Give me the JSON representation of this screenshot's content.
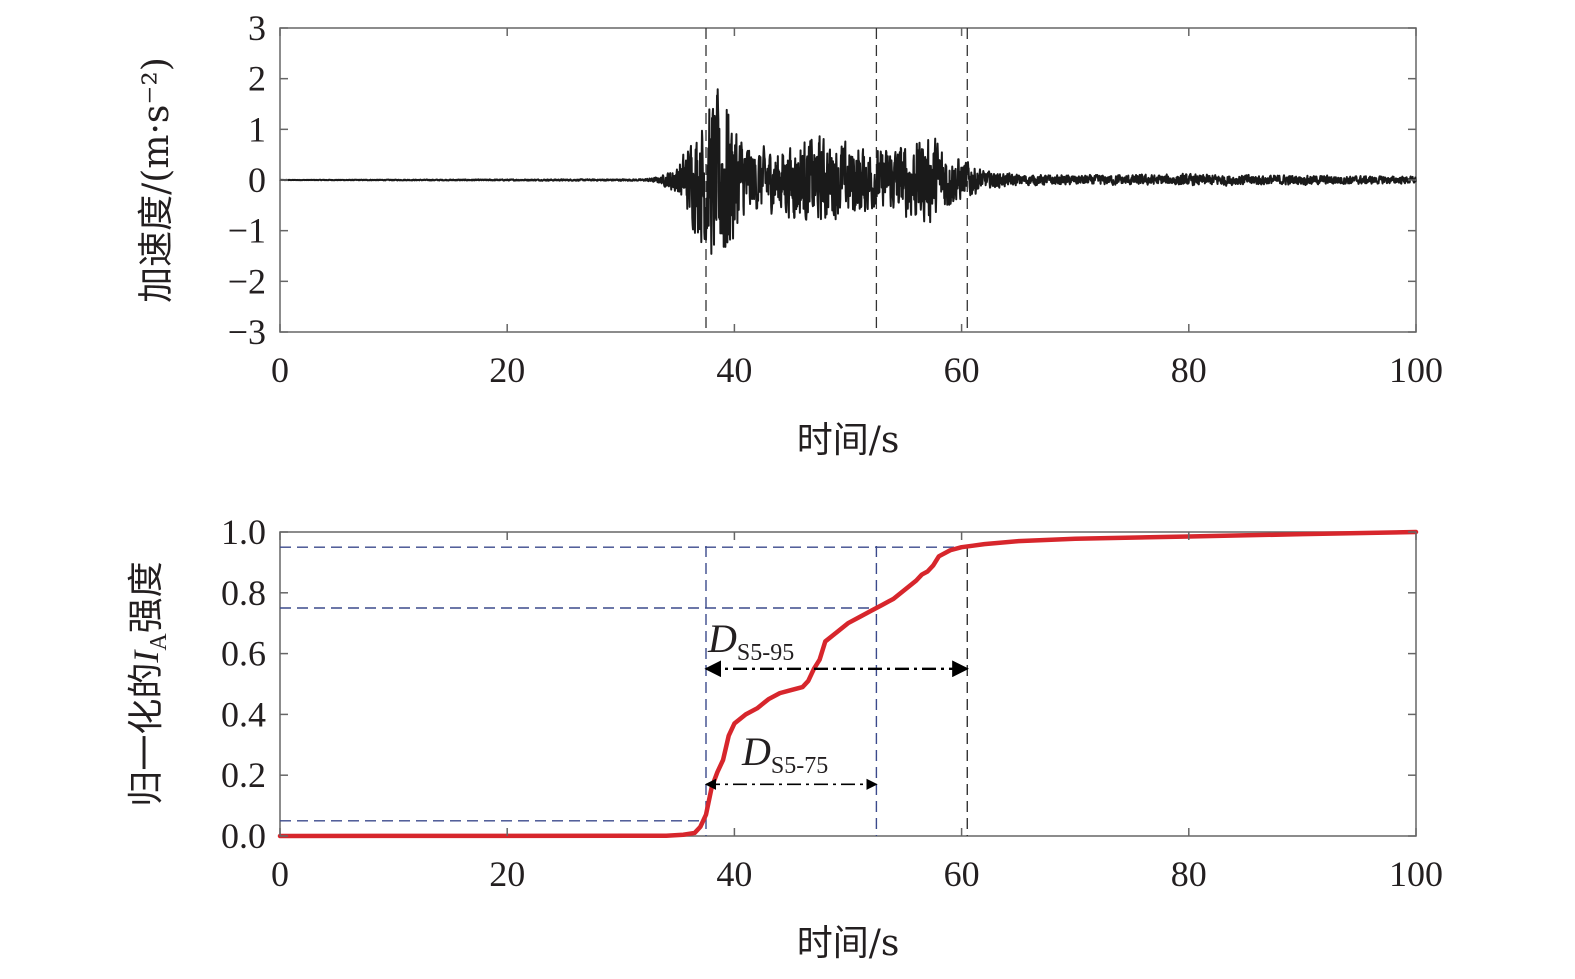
{
  "chart_data": [
    {
      "type": "line",
      "title": "",
      "xlabel": "时间/s",
      "ylabel": "加速度/(m·s⁻²)",
      "xlim": [
        0,
        100
      ],
      "ylim": [
        -3,
        3
      ],
      "xticks": [
        "0",
        "20",
        "40",
        "60",
        "80",
        "100"
      ],
      "yticks": [
        "−3",
        "−2",
        "−1",
        "0",
        "1",
        "2",
        "3"
      ],
      "grid": false,
      "series": [
        {
          "color": "#1a1a1a",
          "envelope": {
            "t": [
              0,
              32,
              33.5,
              35,
              36.5,
              37.5,
              38.5,
              39.3,
              40.5,
              42,
              44,
              46,
              47.5,
              49,
              51,
              52.5,
              54,
              56,
              57.5,
              59,
              60.5,
              62,
              65,
              70,
              80,
              90,
              100
            ],
            "amp": [
              0.005,
              0.02,
              0.08,
              0.35,
              1.1,
              1.7,
              2.0,
              2.1,
              1.0,
              0.7,
              0.75,
              0.95,
              1.0,
              0.85,
              0.85,
              0.65,
              0.75,
              0.95,
              1.0,
              0.6,
              0.45,
              0.2,
              0.13,
              0.11,
              0.13,
              0.11,
              0.08
            ]
          }
        }
      ],
      "vlines": [
        37.5,
        52.5,
        60.5
      ]
    },
    {
      "type": "line",
      "title": "",
      "xlabel": "时间/s",
      "ylabel_main": "归一化的",
      "ylabel_var": "I",
      "ylabel_sub": "A",
      "ylabel_end": "强度",
      "xlim": [
        0,
        100
      ],
      "ylim": [
        0,
        1
      ],
      "xticks": [
        "0",
        "20",
        "40",
        "60",
        "80",
        "100"
      ],
      "yticks": [
        "0.0",
        "0.2",
        "0.4",
        "0.6",
        "0.8",
        "1.0"
      ],
      "grid": false,
      "series": [
        {
          "color": "#d7262c",
          "x": [
            0,
            34,
            35.5,
            36.5,
            37,
            37.5,
            38,
            38.5,
            39,
            39.5,
            40,
            41,
            42,
            43,
            44,
            45,
            46,
            46.5,
            47,
            47.5,
            48,
            49,
            50,
            51,
            52,
            53,
            54,
            55,
            56,
            56.5,
            57,
            57.5,
            58,
            59,
            60,
            61,
            62,
            65,
            70,
            80,
            90,
            100
          ],
          "y": [
            0,
            0.001,
            0.004,
            0.01,
            0.03,
            0.07,
            0.16,
            0.21,
            0.25,
            0.33,
            0.37,
            0.4,
            0.42,
            0.45,
            0.47,
            0.48,
            0.49,
            0.51,
            0.55,
            0.58,
            0.64,
            0.67,
            0.7,
            0.72,
            0.74,
            0.76,
            0.78,
            0.81,
            0.84,
            0.86,
            0.87,
            0.89,
            0.92,
            0.94,
            0.95,
            0.955,
            0.96,
            0.97,
            0.978,
            0.985,
            0.993,
            1.0
          ]
        }
      ],
      "hlines": [
        0.05,
        0.75,
        0.95
      ],
      "vlines": [
        37.5,
        52.5,
        60.5
      ],
      "annotations": [
        {
          "main": "D",
          "sub": "S5-95",
          "from": 37.5,
          "to": 60.5,
          "y": 0.55
        },
        {
          "main": "D",
          "sub": "S5-75",
          "from": 37.5,
          "to": 52.5,
          "y": 0.17
        }
      ]
    }
  ]
}
